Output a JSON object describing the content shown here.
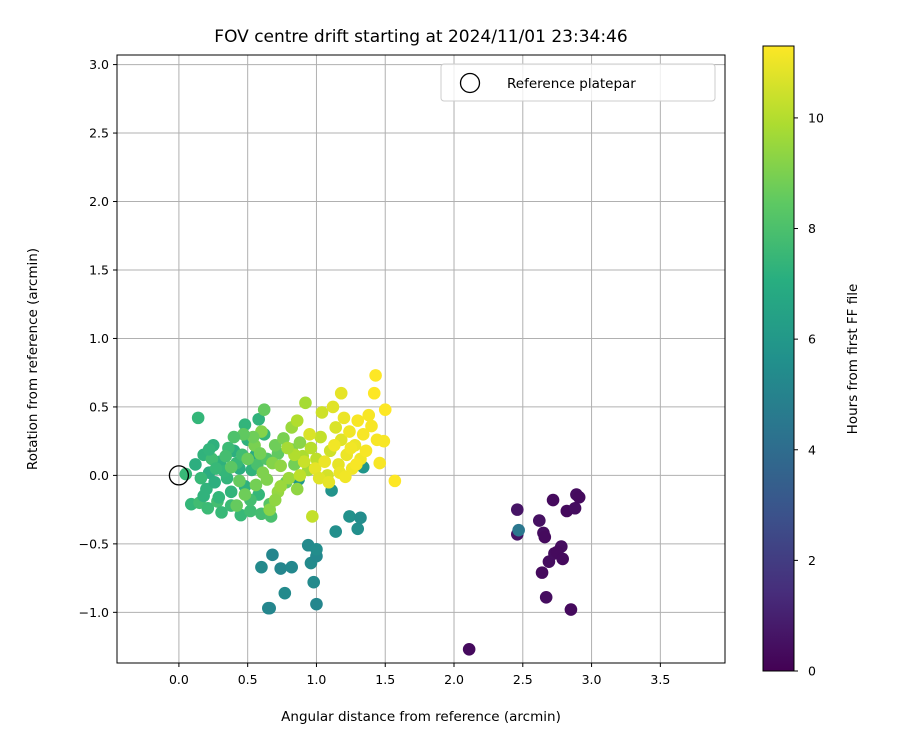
{
  "chart_data": {
    "type": "scatter",
    "title": "FOV centre drift starting at 2024/11/01 23:34:46",
    "xlabel": "Angular distance from reference (arcmin)",
    "ylabel": "Rotation from reference (arcmin)",
    "xlim": [
      -0.45,
      3.97
    ],
    "ylim": [
      -1.37,
      3.07
    ],
    "xticks": [
      "0.0",
      "0.5",
      "1.0",
      "1.5",
      "2.0",
      "2.5",
      "3.0",
      "3.5"
    ],
    "yticks": [
      "3.0",
      "2.5",
      "2.0",
      "1.5",
      "1.0",
      "0.5",
      "0.0",
      "−0.5",
      "−1.0"
    ],
    "grid": true,
    "legend": {
      "placement": "top-right",
      "entries": [
        "Reference platepar"
      ]
    },
    "reference_point": {
      "x": 0.0,
      "y": 0.0,
      "label": "Reference platepar"
    },
    "colorbar": {
      "label": "Hours from first FF file",
      "range": [
        0,
        11.3
      ],
      "ticks": [
        "0",
        "2",
        "4",
        "6",
        "8",
        "10"
      ],
      "colormap": "viridis"
    },
    "points": [
      [
        2.11,
        -1.27,
        0.3
      ],
      [
        2.85,
        -0.98,
        0.3
      ],
      [
        2.67,
        -0.89,
        0.4
      ],
      [
        2.64,
        -0.71,
        0.3
      ],
      [
        2.69,
        -0.63,
        0.4
      ],
      [
        2.73,
        -0.57,
        0.4
      ],
      [
        2.78,
        -0.52,
        0.4
      ],
      [
        2.75,
        -0.56,
        0.3
      ],
      [
        2.79,
        -0.61,
        0.3
      ],
      [
        2.62,
        -0.33,
        0.5
      ],
      [
        2.65,
        -0.42,
        0.4
      ],
      [
        2.66,
        -0.45,
        0.3
      ],
      [
        2.72,
        -0.18,
        0.3
      ],
      [
        2.82,
        -0.26,
        0.3
      ],
      [
        2.88,
        -0.24,
        0.4
      ],
      [
        2.89,
        -0.14,
        0.4
      ],
      [
        2.91,
        -0.16,
        0.3
      ],
      [
        2.46,
        -0.43,
        0.6
      ],
      [
        2.46,
        -0.25,
        0.6
      ],
      [
        2.47,
        -0.4,
        4.5
      ],
      [
        0.65,
        -0.97,
        5.3
      ],
      [
        0.66,
        -0.97,
        5.2
      ],
      [
        0.77,
        -0.86,
        5.4
      ],
      [
        1.0,
        -0.94,
        5.2
      ],
      [
        0.98,
        -0.78,
        5.4
      ],
      [
        0.6,
        -0.67,
        5.4
      ],
      [
        0.74,
        -0.68,
        5.2
      ],
      [
        0.82,
        -0.67,
        5.3
      ],
      [
        0.68,
        -0.58,
        5.2
      ],
      [
        0.96,
        -0.64,
        5.4
      ],
      [
        1.0,
        -0.59,
        5.3
      ],
      [
        0.94,
        -0.51,
        5.4
      ],
      [
        1.0,
        -0.54,
        5.5
      ],
      [
        1.14,
        -0.41,
        5.6
      ],
      [
        1.24,
        -0.3,
        5.7
      ],
      [
        1.3,
        -0.39,
        5.6
      ],
      [
        1.32,
        -0.31,
        5.5
      ],
      [
        1.11,
        -0.11,
        5.8
      ],
      [
        1.34,
        0.06,
        5.9
      ],
      [
        0.87,
        -0.03,
        6.0
      ],
      [
        0.14,
        0.42,
        7.5
      ],
      [
        0.05,
        0.01,
        7.6
      ],
      [
        0.09,
        -0.21,
        7.5
      ],
      [
        0.15,
        -0.2,
        7.8
      ],
      [
        0.21,
        -0.24,
        7.7
      ],
      [
        0.28,
        -0.19,
        7.9
      ],
      [
        0.31,
        -0.27,
        7.6
      ],
      [
        0.38,
        -0.22,
        7.7
      ],
      [
        0.45,
        -0.29,
        7.6
      ],
      [
        0.52,
        -0.26,
        7.8
      ],
      [
        0.6,
        -0.28,
        7.9
      ],
      [
        0.67,
        -0.3,
        8.0
      ],
      [
        0.48,
        0.37,
        7.4
      ],
      [
        0.58,
        0.41,
        7.3
      ],
      [
        0.25,
        0.22,
        7.2
      ],
      [
        0.12,
        0.08,
        7.1
      ],
      [
        0.18,
        0.15,
        7.3
      ],
      [
        0.22,
        0.02,
        7.0
      ],
      [
        0.3,
        0.1,
        7.2
      ],
      [
        0.35,
        -0.02,
        7.4
      ],
      [
        0.4,
        0.18,
        7.1
      ],
      [
        0.44,
        0.05,
        7.0
      ],
      [
        0.5,
        0.26,
        7.2
      ],
      [
        0.56,
        0.15,
        6.9
      ],
      [
        0.62,
        0.3,
        7.5
      ],
      [
        0.2,
        -0.1,
        7.3
      ],
      [
        0.26,
        -0.05,
        7.1
      ],
      [
        0.33,
        0.03,
        7.5
      ],
      [
        0.38,
        -0.12,
        7.4
      ],
      [
        0.42,
        0.09,
        7.6
      ],
      [
        0.48,
        -0.08,
        7.2
      ],
      [
        0.53,
        0.04,
        7.3
      ],
      [
        0.58,
        -0.14,
        7.5
      ],
      [
        0.16,
        -0.02,
        7.6
      ],
      [
        0.24,
        0.12,
        7.8
      ],
      [
        0.29,
        -0.16,
        7.5
      ],
      [
        0.36,
        0.2,
        7.7
      ],
      [
        0.46,
        0.15,
        7.8
      ],
      [
        0.52,
        -0.18,
        7.9
      ],
      [
        0.57,
        0.08,
        8.0
      ],
      [
        0.64,
        0.12,
        8.2
      ],
      [
        0.66,
        -0.21,
        8.3
      ],
      [
        0.72,
        0.16,
        8.5
      ],
      [
        0.78,
        -0.05,
        8.7
      ],
      [
        0.84,
        0.08,
        8.9
      ],
      [
        0.62,
        0.48,
        8.6
      ],
      [
        0.7,
        0.22,
        8.8
      ],
      [
        0.76,
        0.27,
        9.0
      ],
      [
        0.82,
        0.19,
        9.1
      ],
      [
        0.88,
        0.24,
        9.3
      ],
      [
        0.92,
        0.53,
        9.8
      ],
      [
        0.66,
        -0.25,
        9.3
      ],
      [
        0.72,
        -0.12,
        9.5
      ],
      [
        0.8,
        -0.02,
        9.6
      ],
      [
        0.86,
        -0.1,
        9.4
      ],
      [
        0.94,
        0.04,
        9.7
      ],
      [
        0.6,
        0.32,
        9.2
      ],
      [
        0.55,
        0.22,
        9.0
      ],
      [
        0.5,
        0.12,
        8.7
      ],
      [
        0.44,
        -0.04,
        8.6
      ],
      [
        0.38,
        0.06,
        8.4
      ],
      [
        0.42,
        -0.22,
        8.6
      ],
      [
        0.48,
        -0.14,
        8.8
      ],
      [
        0.56,
        -0.07,
        8.9
      ],
      [
        0.61,
        0.02,
        9.1
      ],
      [
        0.68,
        0.09,
        9.2
      ],
      [
        0.74,
        0.07,
        9.4
      ],
      [
        0.82,
        0.35,
        9.6
      ],
      [
        0.9,
        0.14,
        9.9
      ],
      [
        0.96,
        0.2,
        10.1
      ],
      [
        0.86,
        0.4,
        10.0
      ],
      [
        0.97,
        -0.3,
        10.3
      ],
      [
        1.0,
        0.12,
        10.2
      ],
      [
        1.03,
        0.28,
        10.3
      ],
      [
        1.04,
        0.46,
        10.5
      ],
      [
        1.08,
        0.0,
        10.6
      ],
      [
        1.1,
        0.18,
        10.5
      ],
      [
        1.12,
        0.5,
        10.8
      ],
      [
        1.14,
        0.35,
        10.7
      ],
      [
        1.16,
        0.08,
        10.9
      ],
      [
        1.18,
        0.26,
        10.8
      ],
      [
        1.2,
        0.42,
        11.0
      ],
      [
        1.18,
        0.6,
        10.9
      ],
      [
        1.22,
        0.15,
        11.0
      ],
      [
        1.24,
        0.32,
        11.1
      ],
      [
        1.26,
        0.05,
        11.1
      ],
      [
        1.28,
        0.22,
        11.0
      ],
      [
        1.3,
        0.4,
        11.2
      ],
      [
        1.32,
        0.12,
        11.1
      ],
      [
        1.34,
        0.3,
        11.2
      ],
      [
        1.36,
        0.18,
        11.2
      ],
      [
        1.38,
        0.44,
        11.2
      ],
      [
        1.4,
        0.36,
        11.2
      ],
      [
        1.42,
        0.6,
        11.3
      ],
      [
        1.43,
        0.73,
        11.3
      ],
      [
        1.44,
        0.26,
        11.2
      ],
      [
        1.46,
        0.09,
        11.2
      ],
      [
        1.49,
        0.25,
        11.2
      ],
      [
        1.5,
        0.48,
        11.3
      ],
      [
        1.57,
        -0.04,
        11.3
      ],
      [
        0.99,
        0.05,
        10.9
      ],
      [
        1.02,
        -0.02,
        10.8
      ],
      [
        1.06,
        0.1,
        11.0
      ],
      [
        1.09,
        -0.05,
        10.9
      ],
      [
        1.13,
        0.22,
        11.1
      ],
      [
        1.17,
        0.02,
        11.0
      ],
      [
        1.21,
        -0.01,
        11.1
      ],
      [
        1.25,
        0.2,
        11.1
      ],
      [
        1.29,
        0.08,
        11.2
      ],
      [
        0.95,
        0.3,
        10.7
      ],
      [
        0.91,
        0.1,
        10.4
      ],
      [
        0.88,
        0.0,
        10.2
      ],
      [
        0.84,
        0.15,
        10.0
      ],
      [
        0.79,
        0.2,
        9.8
      ],
      [
        0.74,
        -0.08,
        9.6
      ],
      [
        0.7,
        -0.18,
        9.4
      ],
      [
        0.64,
        -0.03,
        9.1
      ],
      [
        0.59,
        0.16,
        8.9
      ],
      [
        0.54,
        0.28,
        8.8
      ],
      [
        0.47,
        0.3,
        8.5
      ],
      [
        0.4,
        0.28,
        8.1
      ],
      [
        0.34,
        0.14,
        7.9
      ],
      [
        0.27,
        0.05,
        7.6
      ],
      [
        0.22,
        0.19,
        7.4
      ],
      [
        0.18,
        -0.15,
        7.3
      ]
    ]
  }
}
